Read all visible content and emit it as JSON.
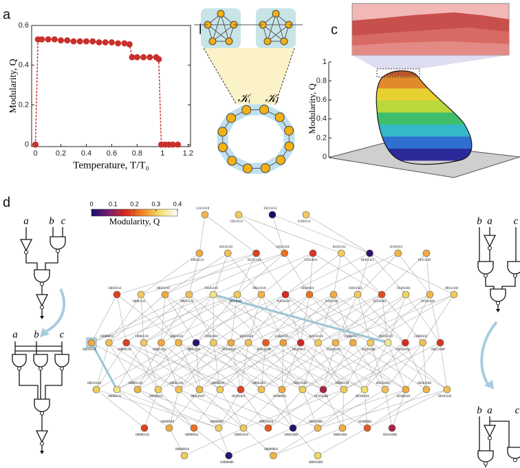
{
  "panel_labels": [
    "a",
    "b",
    "c",
    "d"
  ],
  "chart_data": {
    "type": "line",
    "xlabel": "Temperature, T/T₀",
    "ylabel": "Modularity, Q",
    "x": [
      0,
      0.02,
      0.05,
      0.1,
      0.15,
      0.2,
      0.25,
      0.3,
      0.35,
      0.4,
      0.45,
      0.5,
      0.55,
      0.6,
      0.65,
      0.7,
      0.74,
      0.76,
      0.8,
      0.85,
      0.9,
      0.95,
      0.97,
      0.99,
      1.02,
      1.05,
      1.08,
      1.12
    ],
    "series": [
      {
        "color": "#c8302c",
        "values": [
          0,
          0.53,
          0.53,
          0.53,
          0.53,
          0.525,
          0.525,
          0.52,
          0.52,
          0.52,
          0.52,
          0.515,
          0.515,
          0.515,
          0.51,
          0.51,
          0.505,
          0.44,
          0.44,
          0.44,
          0.44,
          0.44,
          0.43,
          0,
          0,
          0,
          0,
          0
        ]
      }
    ],
    "xlim": [
      -0.03,
      1.22
    ],
    "xticks": [
      0,
      0.2,
      0.4,
      0.6,
      0.8,
      1,
      1.2
    ],
    "ylim": [
      -0.01,
      0.6
    ],
    "yticks": [
      0,
      0.2,
      0.4,
      0.6
    ]
  },
  "panel_b": {
    "labels": [
      "𝒦ᵢ",
      "𝒦ⱼ"
    ]
  },
  "panel_c": {
    "ylabel": "Modularity, Q",
    "ylim": [
      0,
      1
    ],
    "yticks": [
      0,
      0.2,
      0.4,
      0.6,
      0.8,
      1
    ]
  },
  "panel_d": {
    "colorbar": {
      "label": "Modularity, Q",
      "lim": [
        0,
        0.4
      ],
      "ticks": [
        0,
        0.1,
        0.2,
        0.3,
        0.4
      ],
      "colors": [
        "#14106e",
        "#7a1c6c",
        "#d62a1e",
        "#f08a22",
        "#efe070",
        "#ffffff"
      ]
    },
    "network": {
      "rows": [
        [
          {
            "label": "11111110",
            "q": 0.28
          },
          {
            "label": "10111111",
            "q": 0.3
          },
          {
            "label": "01111111",
            "q": 0
          },
          {
            "label": "11101111",
            "q": 0.3
          }
        ],
        [
          {
            "label": "10011111",
            "q": 0.27
          },
          {
            "label": "10111110",
            "q": 0.29
          },
          {
            "label": "01111110",
            "q": 0.18
          },
          {
            "label": "11011110",
            "q": 0.22
          },
          {
            "label": "11011011",
            "q": 0.17
          },
          {
            "label": "01101111",
            "q": 0.3
          },
          {
            "label": "01011111",
            "q": 0.02
          },
          {
            "label": "11101011",
            "q": 0.28
          },
          {
            "label": "10111101",
            "q": 0.27
          }
        ],
        [
          {
            "label": "10010111",
            "q": 0.18
          },
          {
            "label": "10001111",
            "q": 0.3
          },
          {
            "label": "10011110",
            "q": 0.27
          },
          {
            "label": "00011111",
            "q": 0.29
          },
          {
            "label": "10101110",
            "q": 0.33
          },
          {
            "label": "10011011",
            "q": 0.3
          },
          {
            "label": "00111110",
            "q": 0.28
          },
          {
            "label": "11010110",
            "q": 0.16
          },
          {
            "label": "10101011",
            "q": 0.22
          },
          {
            "label": "11011010",
            "q": 0.27
          },
          {
            "label": "01011011",
            "q": 0.3
          },
          {
            "label": "11101001",
            "q": 0.19
          },
          {
            "label": "01101101",
            "q": 0.31
          },
          {
            "label": "01101110",
            "q": 0.28
          },
          {
            "label": "00111101",
            "q": 0.3
          }
        ],
        [
          {
            "label": "00010111",
            "q": 0.27
          },
          {
            "label": "10000011",
            "q": 0.29
          },
          {
            "label": "10000110",
            "q": 0.18
          },
          {
            "label": "10001110",
            "q": 0.3
          },
          {
            "label": "10001101",
            "q": 0.27
          },
          {
            "label": "10010101",
            "q": 0.28
          },
          {
            "label": "00011101",
            "q": 0.02
          },
          {
            "label": "10011001",
            "q": 0.3
          },
          {
            "label": "00110110",
            "q": 0.27
          },
          {
            "label": "10101010",
            "q": 0.29
          },
          {
            "label": "01011100",
            "q": 0.2
          },
          {
            "label": "11001010",
            "q": 0.26
          },
          {
            "label": "10010011",
            "q": 0.15
          },
          {
            "label": "01010110",
            "q": 0.3
          },
          {
            "label": "01101010",
            "q": 0.28
          },
          {
            "label": "01001011",
            "q": 0.27
          },
          {
            "label": "10110100",
            "q": 0.3
          },
          {
            "label": "00101110",
            "q": 0.34
          },
          {
            "label": "01010101",
            "q": 0.16
          },
          {
            "label": "11000101",
            "q": 0.29
          },
          {
            "label": "00111100",
            "q": 0.17
          }
        ],
        [
          {
            "label": "00010110",
            "q": 0.3
          },
          {
            "label": "00000111",
            "q": 0.33
          },
          {
            "label": "00001110",
            "q": 0.28
          },
          {
            "label": "00010011",
            "q": 0.3
          },
          {
            "label": "00001101",
            "q": 0.29
          },
          {
            "label": "00011010",
            "q": 0.28
          },
          {
            "label": "10000101",
            "q": 0.3
          },
          {
            "label": "00101011",
            "q": 0.18
          },
          {
            "label": "00001011",
            "q": 0.29
          },
          {
            "label": "01000011",
            "q": 0.27
          },
          {
            "label": "00010101",
            "q": 0.3
          },
          {
            "label": "01101000",
            "q": 0.12
          },
          {
            "label": "10000110",
            "q": 0.3
          },
          {
            "label": "00100101",
            "q": 0.32
          },
          {
            "label": "00101001",
            "q": 0.29
          },
          {
            "label": "01000101",
            "q": 0.27
          },
          {
            "label": "00101100",
            "q": 0.28
          },
          {
            "label": "00101101",
            "q": 0.29
          }
        ],
        [
          {
            "label": "00000110",
            "q": 0.18
          },
          {
            "label": "10000010",
            "q": 0.27
          },
          {
            "label": "00000011",
            "q": 0.22
          },
          {
            "label": "10000001",
            "q": 0.3
          },
          {
            "label": "00001010",
            "q": 0.3
          },
          {
            "label": "00010010",
            "q": 0.2
          },
          {
            "label": "10001000",
            "q": 0.01
          },
          {
            "label": "00011000",
            "q": 0.28
          },
          {
            "label": "00001001",
            "q": 0.27
          },
          {
            "label": "01000001",
            "q": 0.2
          },
          {
            "label": "00101000",
            "q": 0.12
          }
        ],
        [
          {
            "label": "00000010",
            "q": 0.3
          },
          {
            "label": "10000000",
            "q": 0.02
          },
          {
            "label": "00000001",
            "q": 0.28
          },
          {
            "label": "00001000",
            "q": 0.31
          }
        ]
      ]
    },
    "circuits": {
      "left_top": [
        "a",
        "b",
        "c"
      ],
      "left_bottom": [
        "a",
        "b",
        "c"
      ],
      "right_top": [
        "b",
        "a",
        "c"
      ],
      "right_bottom": [
        "b",
        "a",
        "c"
      ]
    }
  }
}
